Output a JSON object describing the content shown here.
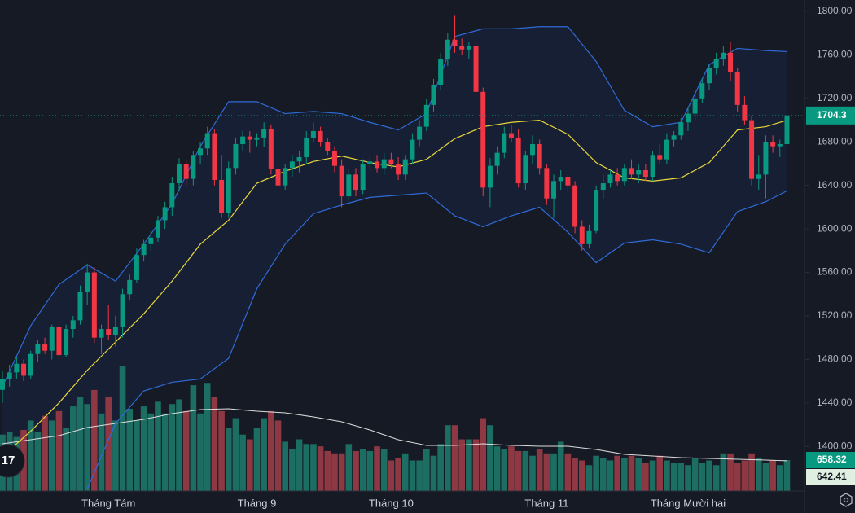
{
  "chart_data": {
    "type": "candlestick",
    "categories": [
      null,
      null,
      null,
      null,
      null,
      null,
      null,
      null,
      null,
      null,
      null,
      null,
      null,
      null,
      null,
      "Tháng Tám",
      null,
      null,
      null,
      null,
      null,
      null,
      null,
      null,
      null,
      null,
      null,
      null,
      null,
      null,
      null,
      null,
      null,
      null,
      null,
      null,
      "Tháng 9",
      null,
      null,
      null,
      null,
      null,
      null,
      null,
      null,
      null,
      null,
      null,
      null,
      null,
      null,
      null,
      null,
      null,
      null,
      "Tháng 10",
      null,
      null,
      null,
      null,
      null,
      null,
      null,
      null,
      null,
      null,
      null,
      null,
      null,
      null,
      null,
      null,
      null,
      null,
      null,
      null,
      null,
      "Tháng 11",
      null,
      null,
      null,
      null,
      null,
      null,
      null,
      null,
      null,
      null,
      null,
      null,
      null,
      null,
      null,
      null,
      null,
      null,
      null,
      "Tháng Mười hai",
      null,
      null,
      null,
      null,
      null,
      null,
      null,
      null,
      null,
      null,
      null,
      null,
      null,
      null
    ],
    "open": [
      1452,
      1462,
      1468,
      1476,
      1465,
      1485,
      1494,
      1488,
      1510,
      1484,
      1508,
      1516,
      1542,
      1560,
      1500,
      1508,
      1502,
      1510,
      1540,
      1553,
      1576,
      1586,
      1592,
      1608,
      1620,
      1642,
      1660,
      1646,
      1668,
      1674,
      1688,
      1645,
      1615,
      1656,
      1678,
      1685,
      1682,
      1684,
      1692,
      1655,
      1640,
      1656,
      1662,
      1666,
      1684,
      1690,
      1680,
      1672,
      1658,
      1630,
      1650,
      1636,
      1660,
      1662,
      1656,
      1664,
      1660,
      1650,
      1664,
      1682,
      1694,
      1714,
      1732,
      1756,
      1774,
      1768,
      1765,
      1768,
      1726,
      1638,
      1658,
      1670,
      1688,
      1684,
      1642,
      1668,
      1678,
      1656,
      1628,
      1644,
      1648,
      1640,
      1602,
      1586,
      1598,
      1636,
      1642,
      1650,
      1644,
      1656,
      1650,
      1654,
      1648,
      1668,
      1664,
      1682,
      1686,
      1698,
      1706,
      1720,
      1734,
      1748,
      1756,
      1762,
      1744,
      1714,
      1700,
      1646,
      1650,
      1680,
      1676,
      1678
    ],
    "high": [
      1470,
      1475,
      1482,
      1480,
      1488,
      1498,
      1500,
      1512,
      1515,
      1512,
      1520,
      1548,
      1568,
      1565,
      1512,
      1530,
      1520,
      1545,
      1558,
      1582,
      1590,
      1598,
      1612,
      1625,
      1648,
      1665,
      1664,
      1672,
      1680,
      1694,
      1692,
      1668,
      1662,
      1684,
      1690,
      1690,
      1688,
      1698,
      1696,
      1660,
      1660,
      1668,
      1672,
      1690,
      1698,
      1694,
      1684,
      1676,
      1664,
      1655,
      1656,
      1664,
      1668,
      1668,
      1670,
      1670,
      1666,
      1668,
      1688,
      1700,
      1720,
      1738,
      1762,
      1780,
      1796,
      1775,
      1772,
      1774,
      1730,
      1665,
      1676,
      1694,
      1696,
      1692,
      1672,
      1686,
      1682,
      1660,
      1650,
      1654,
      1650,
      1644,
      1608,
      1604,
      1640,
      1650,
      1654,
      1656,
      1660,
      1664,
      1660,
      1660,
      1672,
      1678,
      1688,
      1690,
      1702,
      1712,
      1726,
      1738,
      1752,
      1762,
      1768,
      1772,
      1748,
      1722,
      1704,
      1668,
      1686,
      1686,
      1682,
      1708
    ],
    "low": [
      1440,
      1455,
      1462,
      1460,
      1462,
      1478,
      1485,
      1480,
      1478,
      1482,
      1500,
      1512,
      1530,
      1495,
      1485,
      1498,
      1492,
      1500,
      1535,
      1550,
      1570,
      1580,
      1588,
      1600,
      1612,
      1635,
      1640,
      1640,
      1660,
      1668,
      1640,
      1610,
      1610,
      1650,
      1672,
      1670,
      1676,
      1675,
      1650,
      1635,
      1636,
      1648,
      1652,
      1660,
      1680,
      1676,
      1668,
      1652,
      1620,
      1625,
      1630,
      1632,
      1654,
      1652,
      1650,
      1656,
      1645,
      1645,
      1660,
      1676,
      1690,
      1708,
      1728,
      1750,
      1762,
      1760,
      1756,
      1722,
      1630,
      1620,
      1650,
      1665,
      1680,
      1638,
      1636,
      1660,
      1650,
      1622,
      1610,
      1636,
      1634,
      1596,
      1580,
      1582,
      1596,
      1628,
      1638,
      1640,
      1640,
      1646,
      1642,
      1644,
      1644,
      1660,
      1660,
      1676,
      1682,
      1690,
      1700,
      1716,
      1728,
      1742,
      1750,
      1736,
      1708,
      1696,
      1640,
      1636,
      1628,
      1670,
      1666,
      1676
    ],
    "close": [
      1462,
      1468,
      1476,
      1465,
      1485,
      1494,
      1488,
      1510,
      1484,
      1508,
      1516,
      1542,
      1560,
      1500,
      1508,
      1502,
      1510,
      1540,
      1553,
      1576,
      1586,
      1592,
      1608,
      1620,
      1642,
      1660,
      1646,
      1668,
      1674,
      1688,
      1645,
      1615,
      1656,
      1678,
      1685,
      1682,
      1684,
      1692,
      1655,
      1640,
      1656,
      1662,
      1666,
      1684,
      1690,
      1680,
      1672,
      1658,
      1630,
      1650,
      1636,
      1660,
      1662,
      1656,
      1664,
      1660,
      1650,
      1664,
      1682,
      1694,
      1714,
      1732,
      1756,
      1774,
      1768,
      1765,
      1768,
      1726,
      1638,
      1658,
      1670,
      1688,
      1684,
      1642,
      1668,
      1678,
      1656,
      1628,
      1644,
      1648,
      1640,
      1602,
      1586,
      1598,
      1636,
      1642,
      1650,
      1644,
      1656,
      1650,
      1654,
      1648,
      1668,
      1664,
      1682,
      1686,
      1698,
      1706,
      1720,
      1734,
      1748,
      1756,
      1762,
      1744,
      1714,
      1700,
      1646,
      1650,
      1680,
      1676,
      1678,
      1704.3
    ],
    "up_color": "#089981",
    "down_color": "#f23645",
    "ylim": [
      1359,
      1810.5
    ],
    "yticks": [
      {
        "value": 1400,
        "label": "1400.00"
      },
      {
        "value": 1440,
        "label": "1440.00"
      },
      {
        "value": 1480,
        "label": "1480.00"
      },
      {
        "value": 1520,
        "label": "1520.00"
      },
      {
        "value": 1560,
        "label": "1560.00"
      },
      {
        "value": 1600,
        "label": "1600.00"
      },
      {
        "value": 1640,
        "label": "1640.00"
      },
      {
        "value": 1680,
        "label": "1680.00"
      },
      {
        "value": 1720,
        "label": "1720.00"
      },
      {
        "value": 1760,
        "label": "1760.00"
      },
      {
        "value": 1800,
        "label": "1800.00"
      }
    ],
    "bands": [
      {
        "color": "#2f6bd8",
        "x": [
          0,
          4,
          8,
          12,
          16,
          20,
          24,
          28,
          32,
          36,
          40,
          44,
          48,
          52,
          56,
          60,
          64,
          68,
          72,
          76,
          80,
          84,
          88,
          92,
          96,
          100,
          104,
          108,
          111
        ],
        "values": [
          1455,
          1511,
          1549,
          1567,
          1552,
          1586,
          1623,
          1676,
          1717,
          1717,
          1706,
          1708,
          1706,
          1698,
          1691,
          1706,
          1777,
          1784,
          1784,
          1786,
          1786,
          1754,
          1709,
          1694,
          1698,
          1751,
          1766,
          1764,
          1763
        ]
      },
      {
        "color": "#e8d73a",
        "x": [
          0,
          4,
          8,
          12,
          16,
          20,
          24,
          28,
          32,
          36,
          40,
          44,
          48,
          52,
          56,
          60,
          64,
          68,
          72,
          76,
          80,
          84,
          88,
          92,
          96,
          100,
          104,
          108,
          111
        ],
        "values": [
          1391,
          1414,
          1440,
          1470,
          1496,
          1522,
          1552,
          1586,
          1608,
          1642,
          1653,
          1662,
          1667,
          1661,
          1657,
          1664,
          1683,
          1694,
          1698,
          1700,
          1687,
          1661,
          1647,
          1644,
          1647,
          1661,
          1691,
          1694,
          1700
        ]
      },
      {
        "color": "#2f6bd8",
        "x": [
          12,
          16,
          20,
          24,
          28,
          32,
          36,
          40,
          44,
          48,
          52,
          56,
          60,
          64,
          68,
          72,
          76,
          80,
          84,
          88,
          92,
          96,
          100,
          104,
          108,
          111
        ],
        "values": [
          1361,
          1421,
          1451,
          1459,
          1462,
          1481,
          1545,
          1586,
          1614,
          1622,
          1629,
          1631,
          1633,
          1612,
          1602,
          1612,
          1620,
          1597,
          1569,
          1587,
          1590,
          1586,
          1578,
          1616,
          1625,
          1635
        ]
      }
    ],
    "volume": {
      "ylim": [
        0,
        3500
      ],
      "up_color": "#1c6e63",
      "down_color": "#8e3844",
      "values": [
        1200,
        1250,
        1150,
        1300,
        1500,
        1250,
        1600,
        1500,
        1700,
        1350,
        1800,
        2000,
        1850,
        2150,
        1650,
        2000,
        1500,
        2650,
        1750,
        1500,
        1800,
        1650,
        1900,
        1650,
        1850,
        1950,
        1700,
        2250,
        1650,
        2300,
        2000,
        1700,
        1350,
        1550,
        1200,
        1100,
        1350,
        1550,
        1700,
        1500,
        1050,
        900,
        1100,
        1000,
        1000,
        950,
        850,
        800,
        800,
        1000,
        850,
        900,
        850,
        950,
        900,
        650,
        700,
        800,
        650,
        650,
        900,
        750,
        1000,
        1400,
        1400,
        1100,
        1100,
        1100,
        1550,
        1400,
        950,
        900,
        950,
        850,
        850,
        750,
        900,
        800,
        800,
        1050,
        800,
        700,
        650,
        550,
        750,
        700,
        650,
        750,
        700,
        750,
        700,
        600,
        650,
        750,
        650,
        600,
        600,
        550,
        700,
        600,
        650,
        550,
        800,
        800,
        600,
        650,
        800,
        700,
        600,
        650,
        550,
        658.32
      ],
      "ma": {
        "color": "#dcdcdc",
        "x": [
          0,
          4,
          8,
          12,
          16,
          20,
          24,
          28,
          32,
          36,
          40,
          44,
          48,
          52,
          56,
          60,
          64,
          68,
          72,
          76,
          80,
          84,
          88,
          92,
          96,
          100,
          104,
          108,
          111
        ],
        "values": [
          1005,
          1092,
          1178,
          1352,
          1438,
          1525,
          1646,
          1733,
          1750,
          1698,
          1664,
          1577,
          1473,
          1300,
          1092,
          971,
          971,
          1005,
          971,
          953,
          953,
          884,
          780,
          745,
          710,
          693,
          676,
          658,
          642.41
        ]
      }
    },
    "logo_text": "17"
  }
}
